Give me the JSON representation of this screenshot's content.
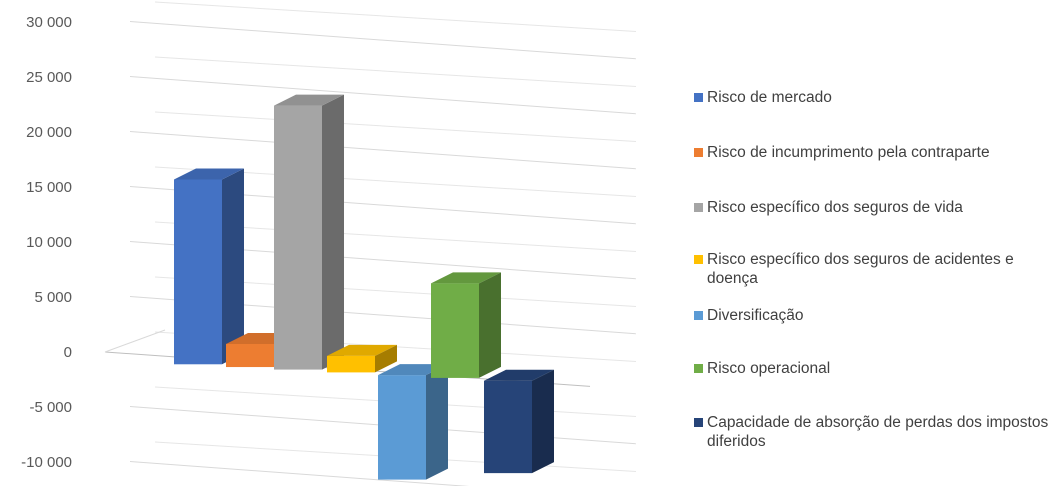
{
  "chart_data": {
    "type": "bar",
    "style": "3d-column",
    "title": "",
    "xlabel": "",
    "ylabel": "",
    "ylim": [
      -10000,
      30000
    ],
    "yticks": [
      -10000,
      -5000,
      0,
      5000,
      10000,
      15000,
      20000,
      25000,
      30000
    ],
    "ytick_labels": [
      "-10 000",
      "-5 000",
      "0",
      "5 000",
      "10 000",
      "15 000",
      "20 000",
      "25 000",
      "30 000"
    ],
    "grid": true,
    "legend_position": "right",
    "series": [
      {
        "name": "Risco de mercado",
        "value": 16800,
        "color": "#4472C4"
      },
      {
        "name": "Risco de incumprimento pela contraparte",
        "value": 2100,
        "color": "#ED7D31"
      },
      {
        "name": "Risco específico dos seguros de vida",
        "value": 24000,
        "color": "#A5A5A5"
      },
      {
        "name": "Risco específico dos seguros de acidentes e doença",
        "value": 1500,
        "color": "#FFC000"
      },
      {
        "name": "Diversificação",
        "value": -9500,
        "color": "#5B9BD5"
      },
      {
        "name": "Risco operacional",
        "value": 8600,
        "color": "#70AD47"
      },
      {
        "name": "Capacidade de absorção de perdas dos impostos diferidos",
        "value": -8400,
        "color": "#264478"
      }
    ]
  }
}
